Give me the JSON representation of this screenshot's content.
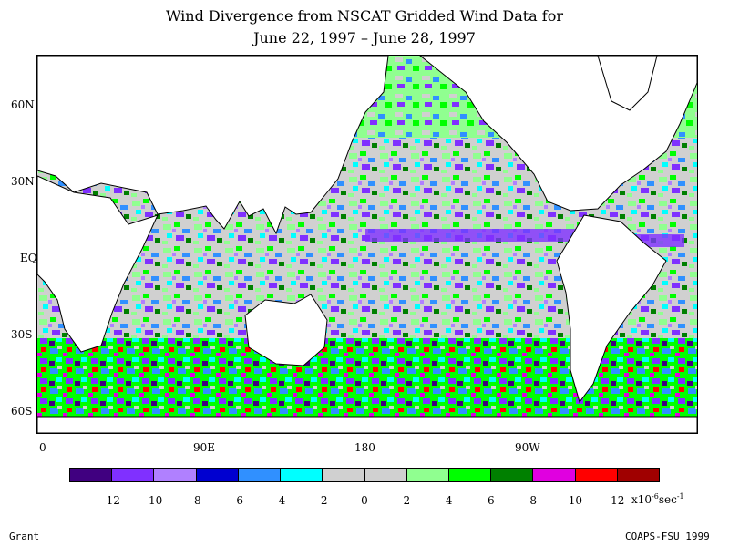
{
  "title": {
    "line1": "Wind Divergence from NSCAT Gridded Wind Data for",
    "line2": "June 22, 1997 – June 28, 1997"
  },
  "map": {
    "lat_labels": [
      "60N",
      "30N",
      "EQ",
      "30S",
      "60S"
    ],
    "lon_labels": [
      "0",
      "90E",
      "180",
      "90W"
    ]
  },
  "colorbar": {
    "colors": [
      "#400080",
      "#8030ff",
      "#b080ff",
      "#0000d0",
      "#3090ff",
      "#00ffff",
      "#d0d0d0",
      "#d0d0d0",
      "#90ff90",
      "#00ff00",
      "#008000",
      "#e000e0",
      "#ff0000",
      "#a00000"
    ],
    "tick_labels": [
      "-12",
      "-10",
      "-8",
      "-6",
      "-4",
      "-2",
      "0",
      "2",
      "4",
      "6",
      "8",
      "10",
      "12"
    ],
    "unit": {
      "base": "x10",
      "exp": "-6",
      "rest": "sec",
      "exp2": "-1"
    }
  },
  "footer": {
    "author": "Grant",
    "credit": "COAPS-FSU 1999"
  }
}
